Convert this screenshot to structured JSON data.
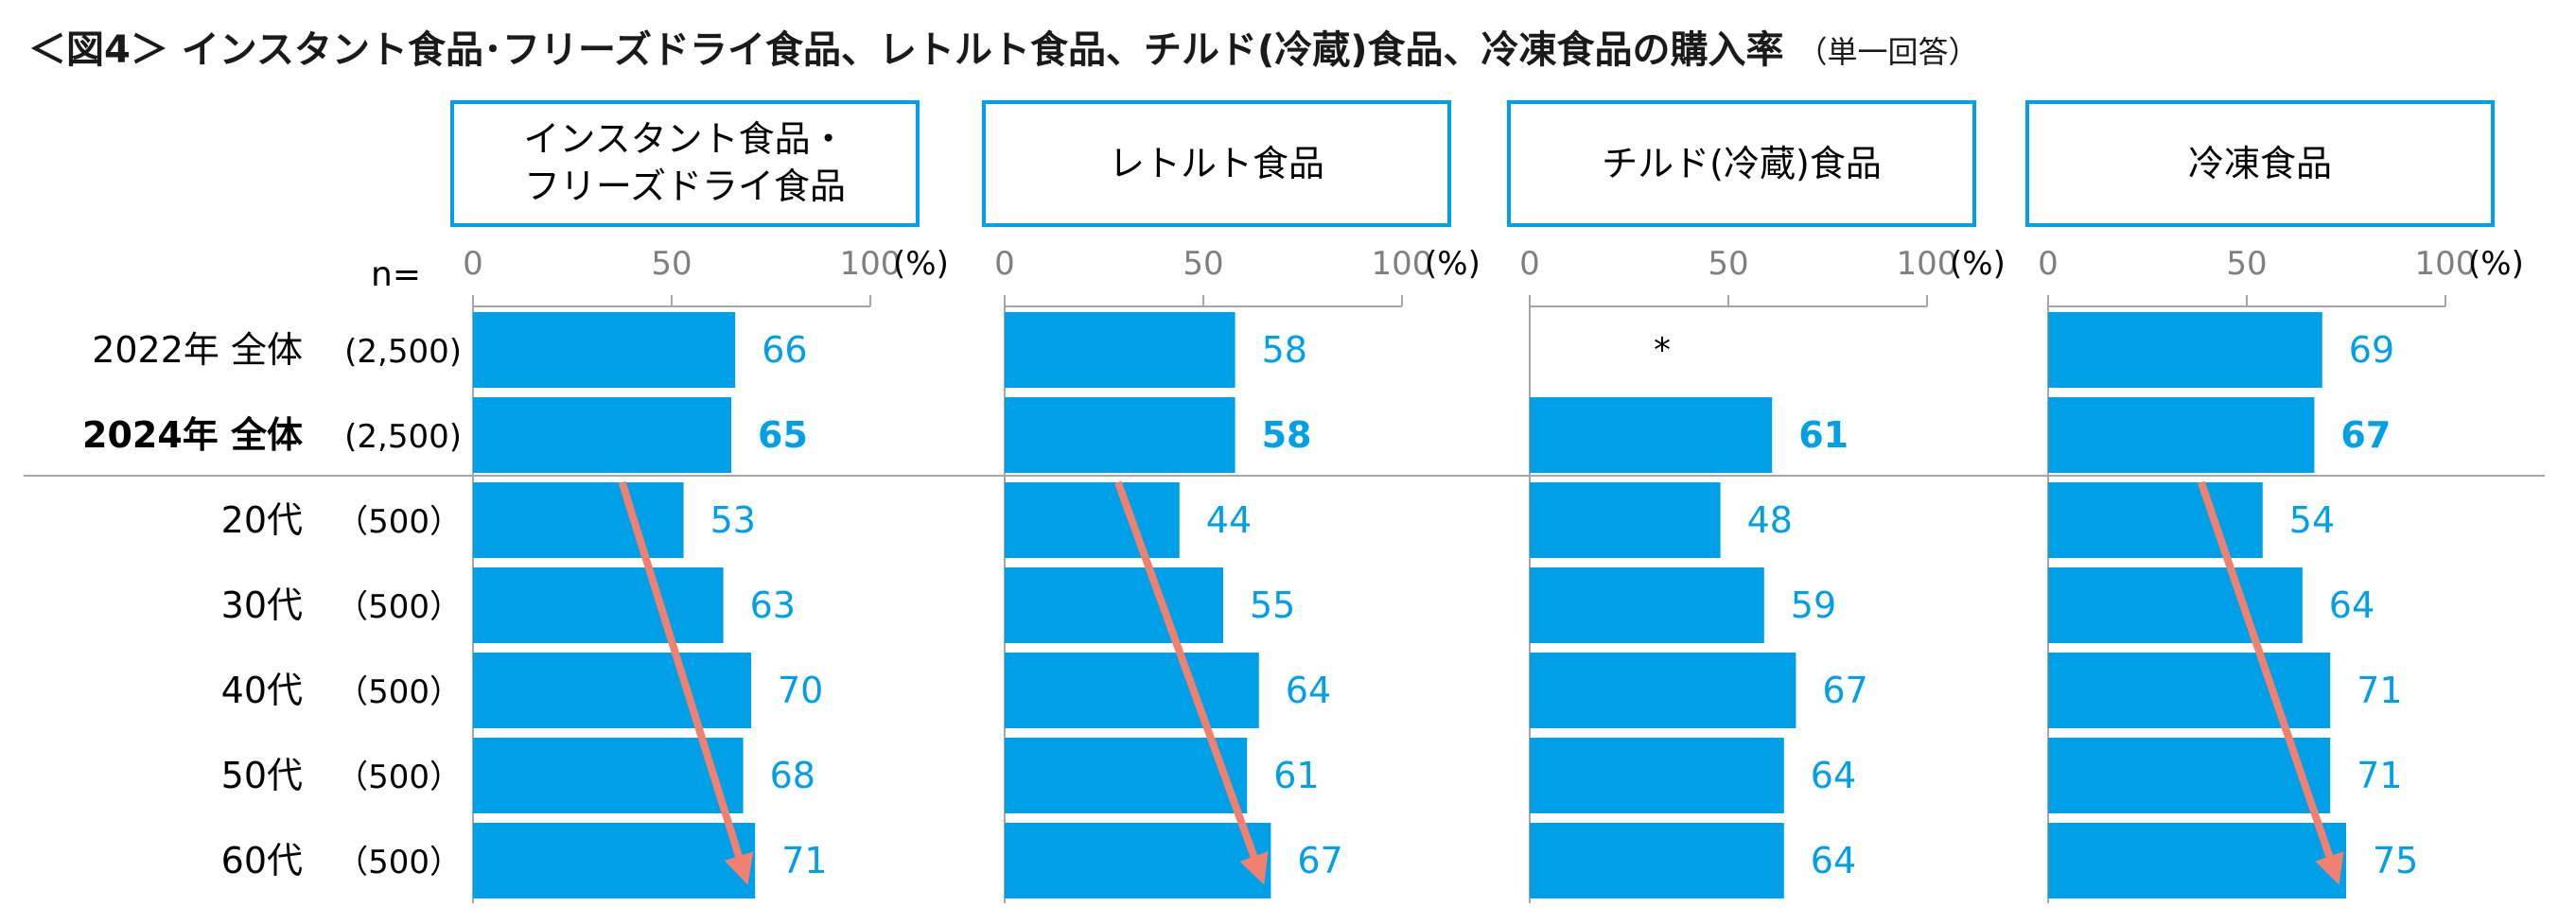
{
  "title": "＜図4＞ インスタント食品･フリーズドライ食品、レトルト食品、チルド(冷蔵)食品、冷凍食品の購入率",
  "title_note": "（単一回答）",
  "colors": {
    "bar": "#00a0e9",
    "label": "#00a0e9",
    "arrow": "#f08070",
    "axis": "#a6a6a6",
    "box_border": "#00a0e9"
  },
  "chart_data": {
    "type": "bar",
    "orientation": "horizontal",
    "unit": "(%)",
    "n_label": "n=",
    "xlim": [
      0,
      100
    ],
    "xticks": [
      0,
      50,
      100
    ],
    "categories": [
      {
        "label": "2022年 全体",
        "n": "(2,500)",
        "bold": false
      },
      {
        "label": "2024年 全体",
        "n": "(2,500)",
        "bold": true
      },
      {
        "label": "20代",
        "n": "（500）",
        "bold": false
      },
      {
        "label": "30代",
        "n": "（500）",
        "bold": false
      },
      {
        "label": "40代",
        "n": "（500）",
        "bold": false
      },
      {
        "label": "50代",
        "n": "（500）",
        "bold": false
      },
      {
        "label": "60代",
        "n": "（500）",
        "bold": false
      }
    ],
    "series": [
      {
        "name": "インスタント食品・フリーズドライ食品",
        "name_lines": [
          "インスタント食品・",
          "フリーズドライ食品"
        ],
        "values": [
          66,
          65,
          53,
          63,
          70,
          68,
          71
        ],
        "trend_arrow": true
      },
      {
        "name": "レトルト食品",
        "name_lines": [
          "レトルト食品"
        ],
        "values": [
          58,
          58,
          44,
          55,
          64,
          61,
          67
        ],
        "trend_arrow": true
      },
      {
        "name": "チルド(冷蔵)食品",
        "name_lines": [
          "チルド(冷蔵)食品"
        ],
        "values": [
          null,
          61,
          48,
          59,
          67,
          64,
          64
        ],
        "missing_marker": "*",
        "trend_arrow": false
      },
      {
        "name": "冷凍食品",
        "name_lines": [
          "冷凍食品"
        ],
        "values": [
          69,
          67,
          54,
          64,
          71,
          71,
          75
        ],
        "trend_arrow": true
      }
    ]
  }
}
